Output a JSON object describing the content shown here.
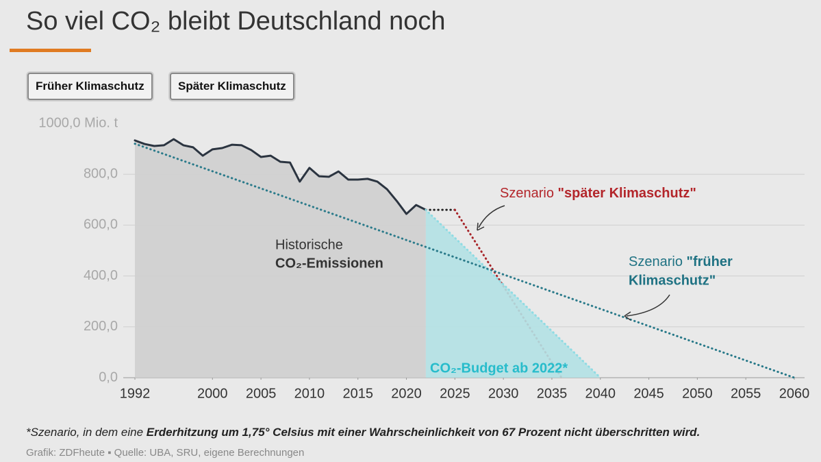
{
  "header": {
    "title": "So viel CO₂ bleibt Deutschland noch"
  },
  "buttons": [
    "Früher Klimaschutz",
    "Später Klimaschutz"
  ],
  "chart_data": {
    "type": "line",
    "ylim": [
      0,
      1000
    ],
    "yticks": [
      {
        "value": 0,
        "label": "0,0"
      },
      {
        "value": 200,
        "label": "200,0"
      },
      {
        "value": 400,
        "label": "400,0"
      },
      {
        "value": 600,
        "label": "600,0"
      },
      {
        "value": 800,
        "label": "800,0"
      },
      {
        "value": 1000,
        "label": "1000,0 Mio. t"
      }
    ],
    "xlim": [
      1992,
      2060
    ],
    "xticks": [
      1992,
      2000,
      2005,
      2010,
      2015,
      2020,
      2025,
      2030,
      2035,
      2040,
      2045,
      2050,
      2055,
      2060
    ],
    "grid": true,
    "series": [
      {
        "color": "#2b3440",
        "fill": "#cfcfcf",
        "dashed": false,
        "x": [
          1992,
          1993,
          1994,
          1995,
          1996,
          1997,
          1998,
          1999,
          2000,
          2001,
          2002,
          2003,
          2004,
          2005,
          2006,
          2007,
          2008,
          2009,
          2010,
          2011,
          2012,
          2013,
          2014,
          2015,
          2016,
          2017,
          2018,
          2019,
          2020,
          2021,
          2022
        ],
        "values": [
          933,
          919,
          911,
          914,
          938,
          914,
          906,
          873,
          898,
          903,
          916,
          914,
          895,
          868,
          873,
          849,
          846,
          771,
          825,
          792,
          790,
          811,
          779,
          779,
          782,
          771,
          741,
          695,
          644,
          679,
          660
        ]
      },
      {
        "color": "#222222",
        "dashed": true,
        "x": [
          2022,
          2025
        ],
        "values": [
          660,
          660
        ]
      },
      {
        "color": "#a8252a",
        "dashed": true,
        "x": [
          2025,
          2036
        ],
        "values": [
          660,
          0
        ]
      },
      {
        "color": "#8fdbe3",
        "fill": "#b2e1e4",
        "dashed": true,
        "x": [
          2022,
          2040
        ],
        "values": [
          660,
          0
        ]
      },
      {
        "color": "#2a7a8a",
        "dashed": true,
        "x": [
          1992,
          2060
        ],
        "values": [
          920,
          0
        ]
      }
    ],
    "annotations": {
      "late": [
        "Szenario ",
        "\"später Klimaschutz\""
      ],
      "historic": [
        "Historische",
        "CO₂-Emissionen"
      ],
      "early": [
        "Szenario ",
        "\"früher",
        "Klimaschutz\""
      ],
      "budget": "CO₂-Budget ab 2022*"
    }
  },
  "footnote": [
    "*Szenario, in dem eine ",
    "Erderhitzung um 1,75° Celsius mit einer Wahrscheinlichkeit von 67 Prozent nicht überschritten wird."
  ],
  "source": "Grafik: ZDFheute ▪ Quelle: UBA, SRU, eigene Berechnungen"
}
